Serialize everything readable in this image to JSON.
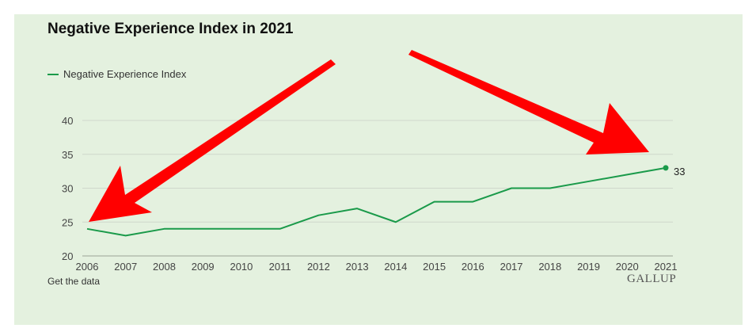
{
  "chart_data": {
    "type": "line",
    "title": "Negative Experience Index in 2021",
    "xlabel": "",
    "ylabel": "",
    "ylim": [
      20,
      40
    ],
    "y_ticks": [
      20,
      25,
      30,
      35,
      40
    ],
    "grid": true,
    "legend_position": "top-left",
    "x": [
      "2006",
      "2007",
      "2008",
      "2009",
      "2010",
      "2011",
      "2012",
      "2013",
      "2014",
      "2015",
      "2016",
      "2017",
      "2018",
      "2019",
      "2020",
      "2021"
    ],
    "series": [
      {
        "name": "Negative Experience Index",
        "color": "#1a9a4a",
        "values": [
          24,
          23,
          24,
          24,
          24,
          24,
          26,
          27,
          25,
          28,
          28,
          30,
          30,
          31,
          32,
          33
        ]
      }
    ],
    "end_label": "33",
    "annotations": [
      "red arrow pointing to 2006 value",
      "red arrow pointing to 2021 value"
    ]
  },
  "footer": {
    "link_text": "Get the data",
    "brand": "GALLUP"
  },
  "colors": {
    "background": "#e4f1df",
    "line": "#1a9a4a",
    "arrow": "#ff0000",
    "grid": "#cfd8cc"
  }
}
